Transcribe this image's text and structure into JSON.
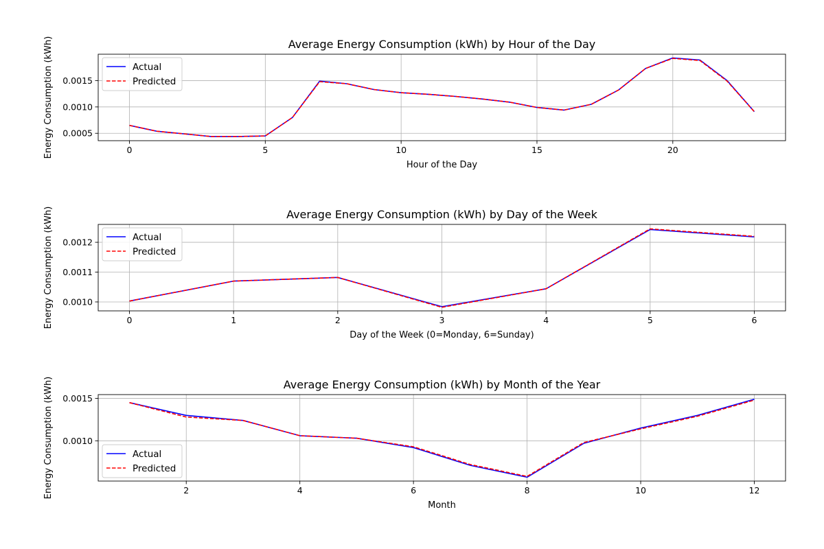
{
  "chart_data": [
    {
      "type": "line",
      "title": "Average Energy Consumption (kWh) by Hour of the Day",
      "xlabel": "Hour of the Day",
      "ylabel": "Energy Consumption (kWh)",
      "xlim": [
        -1.15,
        24.15
      ],
      "ylim": [
        0.00036,
        0.002
      ],
      "xticks": [
        0,
        5,
        10,
        15,
        20
      ],
      "yticks": [
        0.0005,
        0.001,
        0.0015
      ],
      "xtick_labels": [
        "0",
        "5",
        "10",
        "15",
        "20"
      ],
      "ytick_labels": [
        "0.0005",
        "0.0010",
        "0.0015"
      ],
      "grid": true,
      "legend": "upper left",
      "x": [
        0,
        1,
        2,
        3,
        4,
        5,
        6,
        7,
        8,
        9,
        10,
        11,
        12,
        13,
        14,
        15,
        16,
        17,
        18,
        19,
        20,
        21,
        22,
        23
      ],
      "series": [
        {
          "name": "Actual",
          "color": "#0000ff",
          "style": "solid",
          "values": [
            0.00065,
            0.00054,
            0.00049,
            0.00044,
            0.00044,
            0.00045,
            0.0008,
            0.00149,
            0.00144,
            0.00133,
            0.00127,
            0.00124,
            0.0012,
            0.00115,
            0.00109,
            0.00099,
            0.00094,
            0.00105,
            0.00132,
            0.00173,
            0.00193,
            0.00189,
            0.0015,
            0.00091
          ]
        },
        {
          "name": "Predicted",
          "color": "#ff0000",
          "style": "dashed",
          "values": [
            0.00065,
            0.00054,
            0.00049,
            0.00044,
            0.00044,
            0.00045,
            0.0008,
            0.00148,
            0.00144,
            0.00133,
            0.00127,
            0.00124,
            0.0012,
            0.00115,
            0.00109,
            0.00099,
            0.00094,
            0.00105,
            0.00132,
            0.00173,
            0.00192,
            0.00188,
            0.00149,
            0.00091
          ]
        }
      ]
    },
    {
      "type": "line",
      "title": "Average Energy Consumption (kWh) by Day of the Week",
      "xlabel": "Day of the Week (0=Monday, 6=Sunday)",
      "ylabel": "Energy Consumption (kWh)",
      "xlim": [
        -0.3,
        6.3
      ],
      "ylim": [
        0.00097,
        0.00126
      ],
      "xticks": [
        0,
        1,
        2,
        3,
        4,
        5,
        6
      ],
      "yticks": [
        0.001,
        0.0011,
        0.0012
      ],
      "xtick_labels": [
        "0",
        "1",
        "2",
        "3",
        "4",
        "5",
        "6"
      ],
      "ytick_labels": [
        "0.0010",
        "0.0011",
        "0.0012"
      ],
      "grid": true,
      "legend": "upper left",
      "x": [
        0,
        1,
        2,
        3,
        4,
        5,
        6
      ],
      "series": [
        {
          "name": "Actual",
          "color": "#0000ff",
          "style": "solid",
          "values": [
            0.001003,
            0.00107,
            0.001082,
            0.000984,
            0.001044,
            0.001243,
            0.001218
          ]
        },
        {
          "name": "Predicted",
          "color": "#ff0000",
          "style": "dashed",
          "values": [
            0.001003,
            0.00107,
            0.001082,
            0.000982,
            0.001044,
            0.001245,
            0.00122
          ]
        }
      ]
    },
    {
      "type": "line",
      "title": "Average Energy Consumption (kWh) by Month of the Year",
      "xlabel": "Month",
      "ylabel": "Energy Consumption (kWh)",
      "xlim": [
        0.45,
        12.55
      ],
      "ylim": [
        0.000525,
        0.001545
      ],
      "xticks": [
        2,
        4,
        6,
        8,
        10,
        12
      ],
      "yticks": [
        0.001,
        0.0015
      ],
      "xtick_labels": [
        "2",
        "4",
        "6",
        "8",
        "10",
        "12"
      ],
      "ytick_labels": [
        "0.0010",
        "0.0015"
      ],
      "grid": true,
      "legend": "lower left",
      "x": [
        1,
        2,
        3,
        4,
        5,
        6,
        7,
        8,
        9,
        10,
        11,
        12
      ],
      "series": [
        {
          "name": "Actual",
          "color": "#0000ff",
          "style": "solid",
          "values": [
            0.00145,
            0.0013,
            0.00124,
            0.00106,
            0.00103,
            0.00092,
            0.00071,
            0.00057,
            0.00097,
            0.00115,
            0.0013,
            0.00149
          ]
        },
        {
          "name": "Predicted",
          "color": "#ff0000",
          "style": "dashed",
          "values": [
            0.00145,
            0.00128,
            0.00124,
            0.00106,
            0.00103,
            0.00093,
            0.00072,
            0.00058,
            0.00098,
            0.00114,
            0.00129,
            0.00148
          ]
        }
      ]
    }
  ]
}
